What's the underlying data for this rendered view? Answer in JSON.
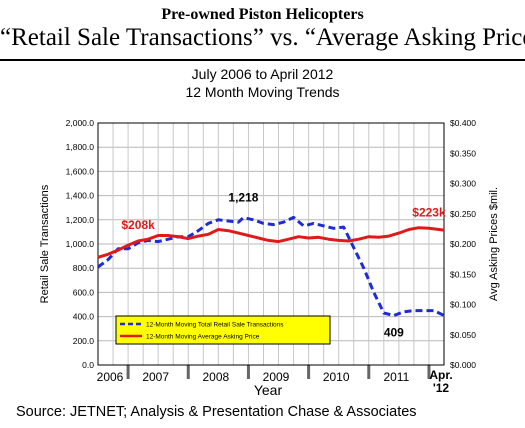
{
  "header": {
    "title_line1": "Pre-owned Piston Helicopters",
    "title_line2": "“Retail Sale Transactions” vs. “Average Asking Price”",
    "subtitle_line1": "July 2006 to April 2012",
    "subtitle_line2": "12 Month Moving Trends"
  },
  "source": "Source: JETNET; Analysis & Presentation Chase & Associates",
  "chart_data": {
    "type": "line",
    "title": "July 2006 to April 2012",
    "subtitle": "12 Month Moving Trends",
    "xlabel": "Year",
    "ylabel_left": "Retail Sale Transactions",
    "ylabel_right": "Avg Asking Prices $mil.",
    "left_axis": {
      "min": 0,
      "max": 2000,
      "ticks": [
        0,
        200,
        400,
        600,
        800,
        1000,
        1200,
        1400,
        1600,
        1800,
        2000
      ],
      "tick_labels": [
        "0.0",
        "200.0",
        "400.0",
        "600.0",
        "800.0",
        "1,000.0",
        "1,200.0",
        "1,400.0",
        "1,600.0",
        "1,800.0",
        "2,000.0"
      ]
    },
    "right_axis": {
      "min": 0,
      "max": 0.4,
      "ticks": [
        0,
        0.05,
        0.1,
        0.15,
        0.2,
        0.25,
        0.3,
        0.35,
        0.4
      ],
      "tick_labels": [
        "$0.000",
        "$0.050",
        "$0.100",
        "$0.150",
        "$0.200",
        "$0.250",
        "$0.300",
        "$0.350",
        "$0.400"
      ]
    },
    "x_axis": {
      "start": "2006-07",
      "end": "2012-04",
      "categories": [
        "2006",
        "2007",
        "2008",
        "2009",
        "2010",
        "2011",
        "Apr. '12"
      ]
    },
    "grid": true,
    "legend_position": "bottom-left",
    "series": [
      {
        "name": "12-Month Moving Total Retail Sale Transactions",
        "axis": "left",
        "style": "dashed",
        "color": "#1f2bd6",
        "points": [
          [
            "2006-07",
            810
          ],
          [
            "2006-09",
            870
          ],
          [
            "2006-11",
            960
          ],
          [
            "2007-01",
            960
          ],
          [
            "2007-03",
            1010
          ],
          [
            "2007-05",
            1030
          ],
          [
            "2007-07",
            1020
          ],
          [
            "2007-09",
            1040
          ],
          [
            "2007-11",
            1060
          ],
          [
            "2008-01",
            1060
          ],
          [
            "2008-03",
            1110
          ],
          [
            "2008-05",
            1170
          ],
          [
            "2008-07",
            1200
          ],
          [
            "2008-09",
            1190
          ],
          [
            "2008-11",
            1180
          ],
          [
            "2008-12",
            1218
          ],
          [
            "2009-02",
            1200
          ],
          [
            "2009-04",
            1170
          ],
          [
            "2009-06",
            1160
          ],
          [
            "2009-08",
            1180
          ],
          [
            "2009-10",
            1220
          ],
          [
            "2009-12",
            1150
          ],
          [
            "2010-02",
            1170
          ],
          [
            "2010-04",
            1150
          ],
          [
            "2010-06",
            1130
          ],
          [
            "2010-08",
            1140
          ],
          [
            "2010-10",
            970
          ],
          [
            "2010-12",
            800
          ],
          [
            "2011-02",
            600
          ],
          [
            "2011-04",
            430
          ],
          [
            "2011-06",
            409
          ],
          [
            "2011-08",
            440
          ],
          [
            "2011-10",
            450
          ],
          [
            "2011-12",
            450
          ],
          [
            "2012-02",
            450
          ],
          [
            "2012-04",
            409
          ]
        ]
      },
      {
        "name": "12-Month Moving Average Asking Price",
        "axis": "right",
        "style": "solid",
        "color": "#e01a1a",
        "points": [
          [
            "2006-07",
            0.178
          ],
          [
            "2006-09",
            0.183
          ],
          [
            "2006-11",
            0.19
          ],
          [
            "2007-01",
            0.198
          ],
          [
            "2007-03",
            0.205
          ],
          [
            "2007-05",
            0.208
          ],
          [
            "2007-07",
            0.214
          ],
          [
            "2007-09",
            0.214
          ],
          [
            "2007-11",
            0.212
          ],
          [
            "2008-01",
            0.209
          ],
          [
            "2008-03",
            0.213
          ],
          [
            "2008-05",
            0.216
          ],
          [
            "2008-07",
            0.224
          ],
          [
            "2008-09",
            0.222
          ],
          [
            "2008-11",
            0.218
          ],
          [
            "2009-01",
            0.214
          ],
          [
            "2009-03",
            0.21
          ],
          [
            "2009-05",
            0.206
          ],
          [
            "2009-07",
            0.204
          ],
          [
            "2009-09",
            0.208
          ],
          [
            "2009-11",
            0.212
          ],
          [
            "2010-01",
            0.21
          ],
          [
            "2010-03",
            0.211
          ],
          [
            "2010-05",
            0.208
          ],
          [
            "2010-07",
            0.206
          ],
          [
            "2010-09",
            0.205
          ],
          [
            "2010-11",
            0.208
          ],
          [
            "2011-01",
            0.212
          ],
          [
            "2011-03",
            0.211
          ],
          [
            "2011-05",
            0.213
          ],
          [
            "2011-07",
            0.218
          ],
          [
            "2011-09",
            0.224
          ],
          [
            "2011-11",
            0.227
          ],
          [
            "2012-01",
            0.226
          ],
          [
            "2012-03",
            0.224
          ],
          [
            "2012-04",
            0.223
          ]
        ]
      }
    ],
    "annotations": [
      {
        "text": "$208k",
        "series": 1,
        "at": "2007-03",
        "color": "#e01a1a"
      },
      {
        "text": "1,218",
        "series": 0,
        "at": "2008-12",
        "color": "#000000"
      },
      {
        "text": "$223k",
        "series": 1,
        "at": "2012-01",
        "color": "#e01a1a"
      },
      {
        "text": "409",
        "series": 0,
        "at": "2011-06",
        "color": "#000000"
      }
    ]
  }
}
